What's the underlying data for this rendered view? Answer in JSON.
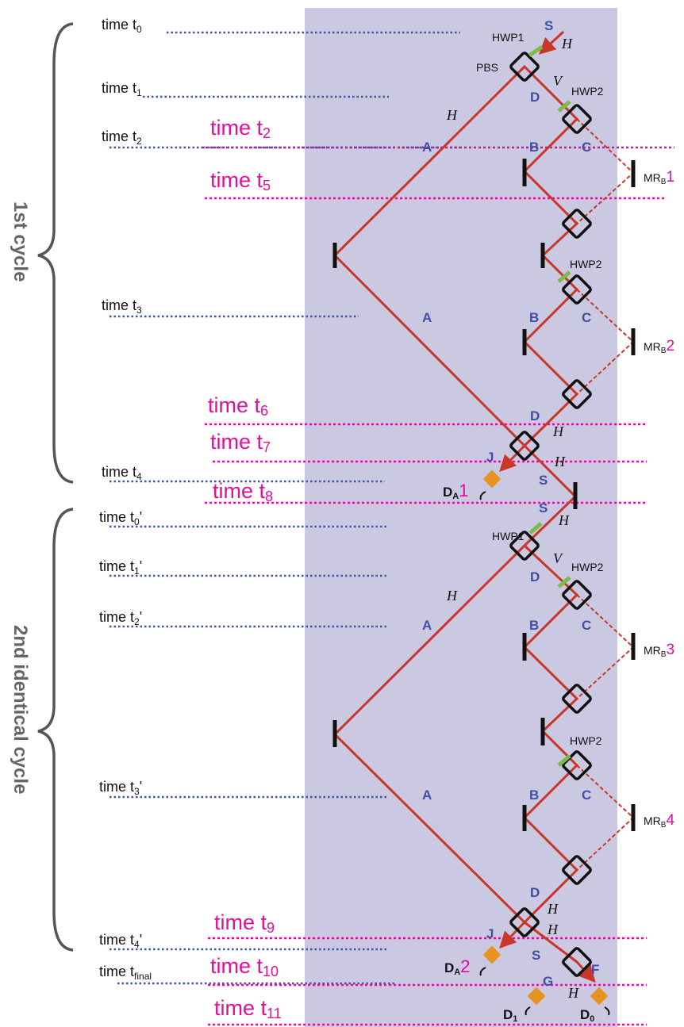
{
  "cycles": {
    "first": "1st cycle",
    "second": "2nd identical cycle"
  },
  "time_labels_black": [
    {
      "id": "t0",
      "base": "time t",
      "sub": "0",
      "prime": ""
    },
    {
      "id": "t1",
      "base": "time t",
      "sub": "1",
      "prime": ""
    },
    {
      "id": "t2",
      "base": "time t",
      "sub": "2",
      "prime": ""
    },
    {
      "id": "t3",
      "base": "time t",
      "sub": "3",
      "prime": ""
    },
    {
      "id": "t4",
      "base": "time t",
      "sub": "4",
      "prime": ""
    },
    {
      "id": "t0p",
      "base": "time t",
      "sub": "0",
      "prime": "'"
    },
    {
      "id": "t1p",
      "base": "time t",
      "sub": "1",
      "prime": "'"
    },
    {
      "id": "t2p",
      "base": "time t",
      "sub": "2",
      "prime": "'"
    },
    {
      "id": "t3p",
      "base": "time t",
      "sub": "3",
      "prime": "'"
    },
    {
      "id": "t4p",
      "base": "time t",
      "sub": "4",
      "prime": "'"
    },
    {
      "id": "tfinal",
      "base": "time t",
      "sub": "final",
      "prime": ""
    }
  ],
  "time_labels_magenta": [
    {
      "id": "m2",
      "base": "time t",
      "sub": "2"
    },
    {
      "id": "m5",
      "base": "time t",
      "sub": "5"
    },
    {
      "id": "m6",
      "base": "time t",
      "sub": "6"
    },
    {
      "id": "m7",
      "base": "time t",
      "sub": "7"
    },
    {
      "id": "m8",
      "base": "time t",
      "sub": "8"
    },
    {
      "id": "m9",
      "base": "time t",
      "sub": "9"
    },
    {
      "id": "m10",
      "base": "time t",
      "sub": "10"
    },
    {
      "id": "m11",
      "base": "time t",
      "sub": "11"
    }
  ],
  "components": {
    "hwp1": "HWP1",
    "hwp2": "HWP2",
    "pbs": "PBS",
    "source": "S"
  },
  "path_labels": {
    "A": "A",
    "B": "B",
    "C": "C",
    "D": "D",
    "J": "J",
    "S": "S",
    "G": "G",
    "F": "F"
  },
  "polarizations": {
    "H": "H",
    "V": "V"
  },
  "mirrors": [
    {
      "id": "mr1",
      "base": "MR",
      "sub": "B",
      "num": "1"
    },
    {
      "id": "mr2",
      "base": "MR",
      "sub": "B",
      "num": "2"
    },
    {
      "id": "mr3",
      "base": "MR",
      "sub": "B",
      "num": "3"
    },
    {
      "id": "mr4",
      "base": "MR",
      "sub": "B",
      "num": "4"
    }
  ],
  "detectors": {
    "da1": {
      "base": "D",
      "sub": "A",
      "num": "1"
    },
    "da2": {
      "base": "D",
      "sub": "A",
      "num": "2"
    },
    "d1": {
      "base": "D",
      "sub": "1"
    },
    "d0": {
      "base": "D",
      "sub": "0"
    }
  },
  "colors": {
    "beam": "#c8372a",
    "panel": "#cbc9e1",
    "blue_dotted": "#3f56a3",
    "magenta": "#e0109a",
    "waveplate": "#7cbb4a",
    "detector": "#e8921f",
    "path_label": "#3f4fa6",
    "brace": "#555555"
  }
}
